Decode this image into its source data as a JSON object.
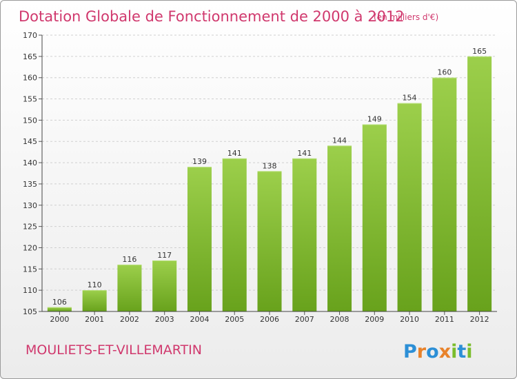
{
  "chart_data": {
    "type": "bar",
    "title": "Dotation Globale de Fonctionnement de 2000 à 2012",
    "subtitle": "(en milliers d'€)",
    "categories": [
      "2000",
      "2001",
      "2002",
      "2003",
      "2004",
      "2005",
      "2006",
      "2007",
      "2008",
      "2009",
      "2010",
      "2011",
      "2012"
    ],
    "values": [
      106,
      110,
      116,
      117,
      139,
      141,
      138,
      141,
      144,
      149,
      154,
      160,
      165
    ],
    "ylim": [
      105,
      170
    ],
    "yticks": [
      105,
      110,
      115,
      120,
      125,
      130,
      135,
      140,
      145,
      150,
      155,
      160,
      165,
      170
    ],
    "xlabel": "",
    "ylabel": "",
    "grid": true,
    "bar_color_light": "#9ccf4b",
    "bar_color_dark": "#68a21c"
  },
  "commune": "MOULIETS-ET-VILLEMARTIN",
  "logo": {
    "letters": [
      "P",
      "r",
      "o",
      "x",
      "i",
      "t",
      "i"
    ],
    "colors": [
      "#2c8fd6",
      "#e8822a",
      "#2c8fd6",
      "#e8822a",
      "#7bbd2c",
      "#2c8fd6",
      "#7bbd2c"
    ]
  },
  "accent_color": "#d0386d"
}
